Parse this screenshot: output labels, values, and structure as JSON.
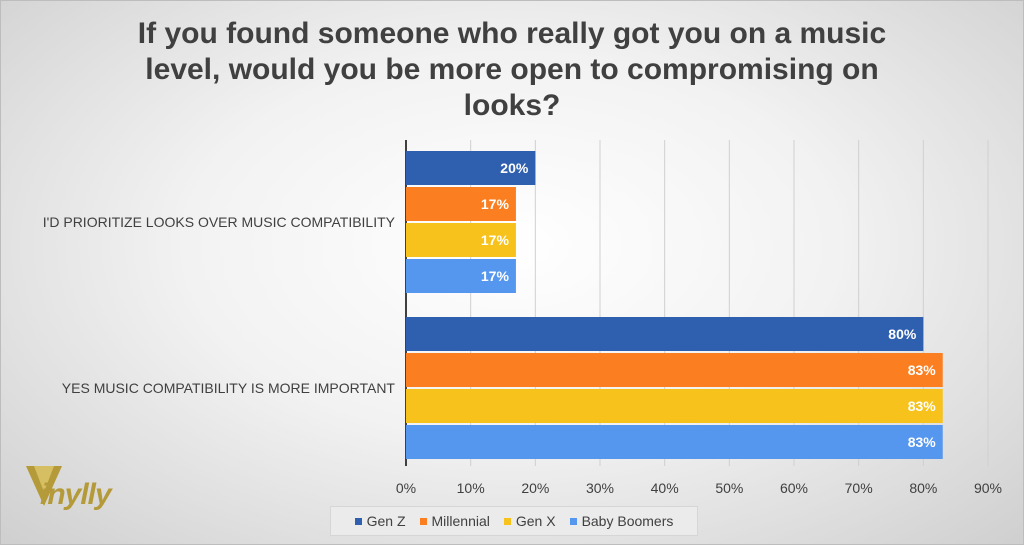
{
  "chart_data": {
    "type": "bar",
    "orientation": "horizontal",
    "title": "If you found someone who really got you on a music level, would you be more open to compromising on looks?",
    "categories": [
      "I'D PRIORITIZE LOOKS OVER MUSIC COMPATIBILITY",
      "YES MUSIC COMPATIBILITY IS MORE IMPORTANT"
    ],
    "series": [
      {
        "name": "Gen Z",
        "values": [
          20,
          80
        ],
        "labels": [
          "20%",
          "80%"
        ],
        "color": "#2f5faf"
      },
      {
        "name": "Millennial",
        "values": [
          17,
          83
        ],
        "labels": [
          "17%",
          "83%"
        ],
        "color": "#fb7e20"
      },
      {
        "name": "Gen X",
        "values": [
          17,
          83
        ],
        "labels": [
          "17%",
          "83%"
        ],
        "color": "#f6c21b"
      },
      {
        "name": "Baby Boomers",
        "values": [
          17,
          83
        ],
        "labels": [
          "17%",
          "83%"
        ],
        "color": "#5596ee"
      }
    ],
    "xlim": [
      0,
      90
    ],
    "xticks": [
      "0%",
      "10%",
      "20%",
      "30%",
      "40%",
      "50%",
      "60%",
      "70%",
      "80%",
      "90%"
    ],
    "grid": true,
    "legend_position": "bottom"
  },
  "logo": {
    "text": "inylly",
    "color": "#b59a3a"
  }
}
